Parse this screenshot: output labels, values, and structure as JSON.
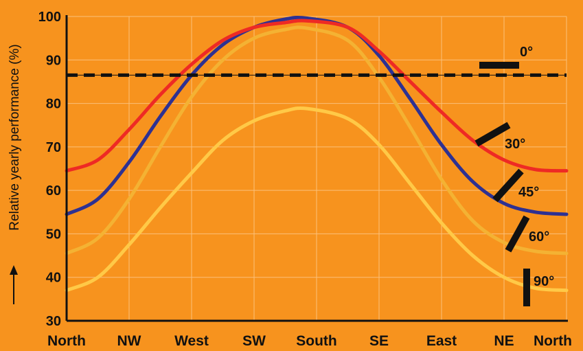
{
  "chart_data": {
    "type": "line",
    "title": "",
    "xlabel": "",
    "ylabel": "Relative yearly performance (%)",
    "ylim": [
      30,
      100
    ],
    "yticks": [
      30,
      40,
      50,
      60,
      70,
      80,
      90,
      100
    ],
    "categories": [
      "North",
      "NW",
      "West",
      "SW",
      "South",
      "SE",
      "East",
      "NE",
      "North"
    ],
    "grid": true,
    "reference_line": {
      "value": 86.5,
      "style": "dashed",
      "color": "#111111"
    },
    "series": [
      {
        "name": "0°",
        "color": "#111111",
        "x": [
          0,
          8
        ],
        "values": [
          86.5,
          86.5
        ]
      },
      {
        "name": "30°",
        "color": "#ee2a24",
        "x": [
          0,
          0.5,
          1,
          1.5,
          2,
          2.5,
          3,
          3.5,
          3.85,
          4.5,
          5,
          5.5,
          6,
          6.5,
          7,
          7.5,
          8
        ],
        "values": [
          64.5,
          67,
          74,
          82,
          89,
          94.5,
          97.5,
          98.6,
          99,
          97.5,
          92,
          85,
          78,
          71.5,
          67,
          64.8,
          64.5
        ]
      },
      {
        "name": "45°",
        "color": "#2e3192",
        "x": [
          0,
          0.5,
          1,
          1.5,
          2,
          2.5,
          3,
          3.5,
          3.85,
          4.5,
          5,
          5.5,
          6,
          6.5,
          7,
          7.5,
          8
        ],
        "values": [
          54.5,
          58,
          66.5,
          77,
          86.5,
          93.5,
          97.5,
          99.4,
          99.6,
          97.5,
          91,
          81,
          70.5,
          62,
          57,
          55,
          54.5
        ]
      },
      {
        "name": "60°",
        "color": "#f4b233",
        "x": [
          0,
          0.5,
          1,
          1.5,
          2,
          2.5,
          3,
          3.5,
          3.85,
          4.5,
          5,
          5.5,
          6,
          6.5,
          7,
          7.5,
          8
        ],
        "values": [
          45.5,
          49,
          58,
          70,
          81.5,
          90,
          95,
          97,
          97.3,
          94.5,
          86,
          74.5,
          62.5,
          53,
          48,
          46,
          45.5
        ]
      },
      {
        "name": "90°",
        "color": "#ffc947",
        "x": [
          0,
          0.5,
          1,
          1.5,
          2,
          2.5,
          3,
          3.5,
          3.85,
          4.5,
          5,
          5.5,
          6,
          6.5,
          7,
          7.5,
          8
        ],
        "values": [
          37,
          40,
          47.5,
          56,
          64,
          71.5,
          76,
          78.3,
          78.8,
          76.5,
          70.5,
          61.5,
          52.5,
          45,
          40,
          37.5,
          37
        ]
      }
    ]
  },
  "colors": {
    "background": "#f7931e",
    "grid": "#fbc07a",
    "axis": "#111111",
    "text": "#111111"
  }
}
